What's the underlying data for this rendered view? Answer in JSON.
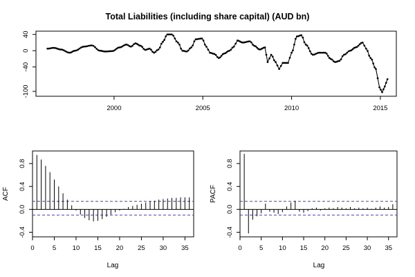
{
  "chart_data": [
    {
      "type": "line",
      "title": "Total Liabilities (including share capital) (AUD bn)",
      "xlabel": "",
      "ylabel": "",
      "xlim": [
        1995.6,
        2015.9
      ],
      "ylim": [
        -112,
        48
      ],
      "xticks": [
        "2000",
        "2005",
        "2010",
        "2015"
      ],
      "yticks": [
        "40",
        "0",
        "-40",
        "-100"
      ],
      "marker": "dot",
      "anchors": [
        [
          1996.25,
          5
        ],
        [
          1996.6,
          7
        ],
        [
          1997.0,
          3
        ],
        [
          1997.5,
          -5
        ],
        [
          1997.8,
          0
        ],
        [
          1998.3,
          10
        ],
        [
          1998.75,
          13
        ],
        [
          1999.2,
          0
        ],
        [
          1999.5,
          -2
        ],
        [
          1999.9,
          -1
        ],
        [
          2000.3,
          8
        ],
        [
          2000.7,
          15
        ],
        [
          2000.95,
          10
        ],
        [
          2001.2,
          18
        ],
        [
          2001.5,
          12
        ],
        [
          2001.75,
          2
        ],
        [
          2002.0,
          5
        ],
        [
          2002.25,
          -5
        ],
        [
          2002.5,
          3
        ],
        [
          2002.75,
          22
        ],
        [
          2003.0,
          40
        ],
        [
          2003.25,
          40
        ],
        [
          2003.6,
          20
        ],
        [
          2003.85,
          0
        ],
        [
          2004.1,
          -2
        ],
        [
          2004.35,
          8
        ],
        [
          2004.6,
          28
        ],
        [
          2004.95,
          30
        ],
        [
          2005.2,
          10
        ],
        [
          2005.4,
          -5
        ],
        [
          2005.65,
          -8
        ],
        [
          2005.9,
          -18
        ],
        [
          2006.2,
          -7
        ],
        [
          2006.5,
          0
        ],
        [
          2006.75,
          10
        ],
        [
          2006.95,
          25
        ],
        [
          2007.25,
          20
        ],
        [
          2007.65,
          23
        ],
        [
          2007.9,
          12
        ],
        [
          2008.2,
          3
        ],
        [
          2008.5,
          8
        ],
        [
          2008.65,
          -28
        ],
        [
          2008.85,
          -10
        ],
        [
          2009.1,
          -28
        ],
        [
          2009.3,
          -45
        ],
        [
          2009.5,
          -30
        ],
        [
          2009.8,
          -30
        ],
        [
          2010.0,
          -5
        ],
        [
          2010.3,
          35
        ],
        [
          2010.55,
          38
        ],
        [
          2010.8,
          15
        ],
        [
          2011.2,
          -10
        ],
        [
          2011.55,
          -5
        ],
        [
          2011.9,
          -5
        ],
        [
          2012.2,
          -20
        ],
        [
          2012.45,
          -28
        ],
        [
          2012.7,
          -25
        ],
        [
          2012.95,
          -10
        ],
        [
          2013.3,
          0
        ],
        [
          2013.6,
          8
        ],
        [
          2014.0,
          20
        ],
        [
          2014.2,
          5
        ],
        [
          2014.45,
          -18
        ],
        [
          2014.75,
          -45
        ],
        [
          2014.95,
          -90
        ],
        [
          2015.1,
          -102
        ],
        [
          2015.25,
          -88
        ],
        [
          2015.4,
          -70
        ]
      ]
    },
    {
      "type": "bar",
      "xlabel": "Lag",
      "ylabel": "ACF",
      "xlim": [
        0,
        37
      ],
      "ylim": [
        -0.48,
        1.02
      ],
      "xticks": [
        "0",
        "5",
        "10",
        "15",
        "20",
        "25",
        "30",
        "35"
      ],
      "yticks": [
        "-0.4",
        "0.0",
        "0.4",
        "0.8"
      ],
      "confidence_band": [
        0.14,
        -0.1
      ],
      "lags": [
        1,
        2,
        3,
        4,
        5,
        6,
        7,
        8,
        9,
        10,
        11,
        12,
        13,
        14,
        15,
        16,
        17,
        18,
        19,
        20,
        21,
        22,
        23,
        24,
        25,
        26,
        27,
        28,
        29,
        30,
        31,
        32,
        33,
        34,
        35,
        36
      ],
      "values": [
        0.95,
        0.87,
        0.76,
        0.65,
        0.52,
        0.4,
        0.28,
        0.17,
        0.07,
        -0.02,
        -0.09,
        -0.15,
        -0.19,
        -0.21,
        -0.2,
        -0.17,
        -0.13,
        -0.09,
        -0.05,
        -0.02,
        0.01,
        0.04,
        0.06,
        0.08,
        0.1,
        0.12,
        0.14,
        0.15,
        0.17,
        0.18,
        0.19,
        0.2,
        0.2,
        0.21,
        0.21,
        0.21
      ]
    },
    {
      "type": "bar",
      "xlabel": "Lag",
      "ylabel": "PACF",
      "xlim": [
        0,
        37
      ],
      "ylim": [
        -0.48,
        1.02
      ],
      "xticks": [
        "0",
        "5",
        "10",
        "15",
        "20",
        "25",
        "30",
        "35"
      ],
      "yticks": [
        "-0.4",
        "0.0",
        "0.4",
        "0.8"
      ],
      "confidence_band": [
        0.14,
        -0.1
      ],
      "lags": [
        1,
        2,
        3,
        4,
        5,
        6,
        7,
        8,
        9,
        10,
        11,
        12,
        13,
        14,
        15,
        16,
        17,
        18,
        19,
        20,
        21,
        22,
        23,
        24,
        25,
        26,
        27,
        28,
        29,
        30,
        31,
        32,
        33,
        34,
        35,
        36
      ],
      "values": [
        0.97,
        -0.42,
        -0.18,
        -0.12,
        -0.07,
        0.1,
        -0.04,
        -0.06,
        -0.08,
        -0.05,
        0.05,
        0.12,
        0.15,
        -0.04,
        -0.06,
        -0.03,
        0.02,
        0.03,
        -0.02,
        0.02,
        0.03,
        0.02,
        0.04,
        0.03,
        0.02,
        0.04,
        0.02,
        0.03,
        0.02,
        0.03,
        0.01,
        0.03,
        0.05,
        0.03,
        0.04,
        0.09
      ]
    }
  ]
}
